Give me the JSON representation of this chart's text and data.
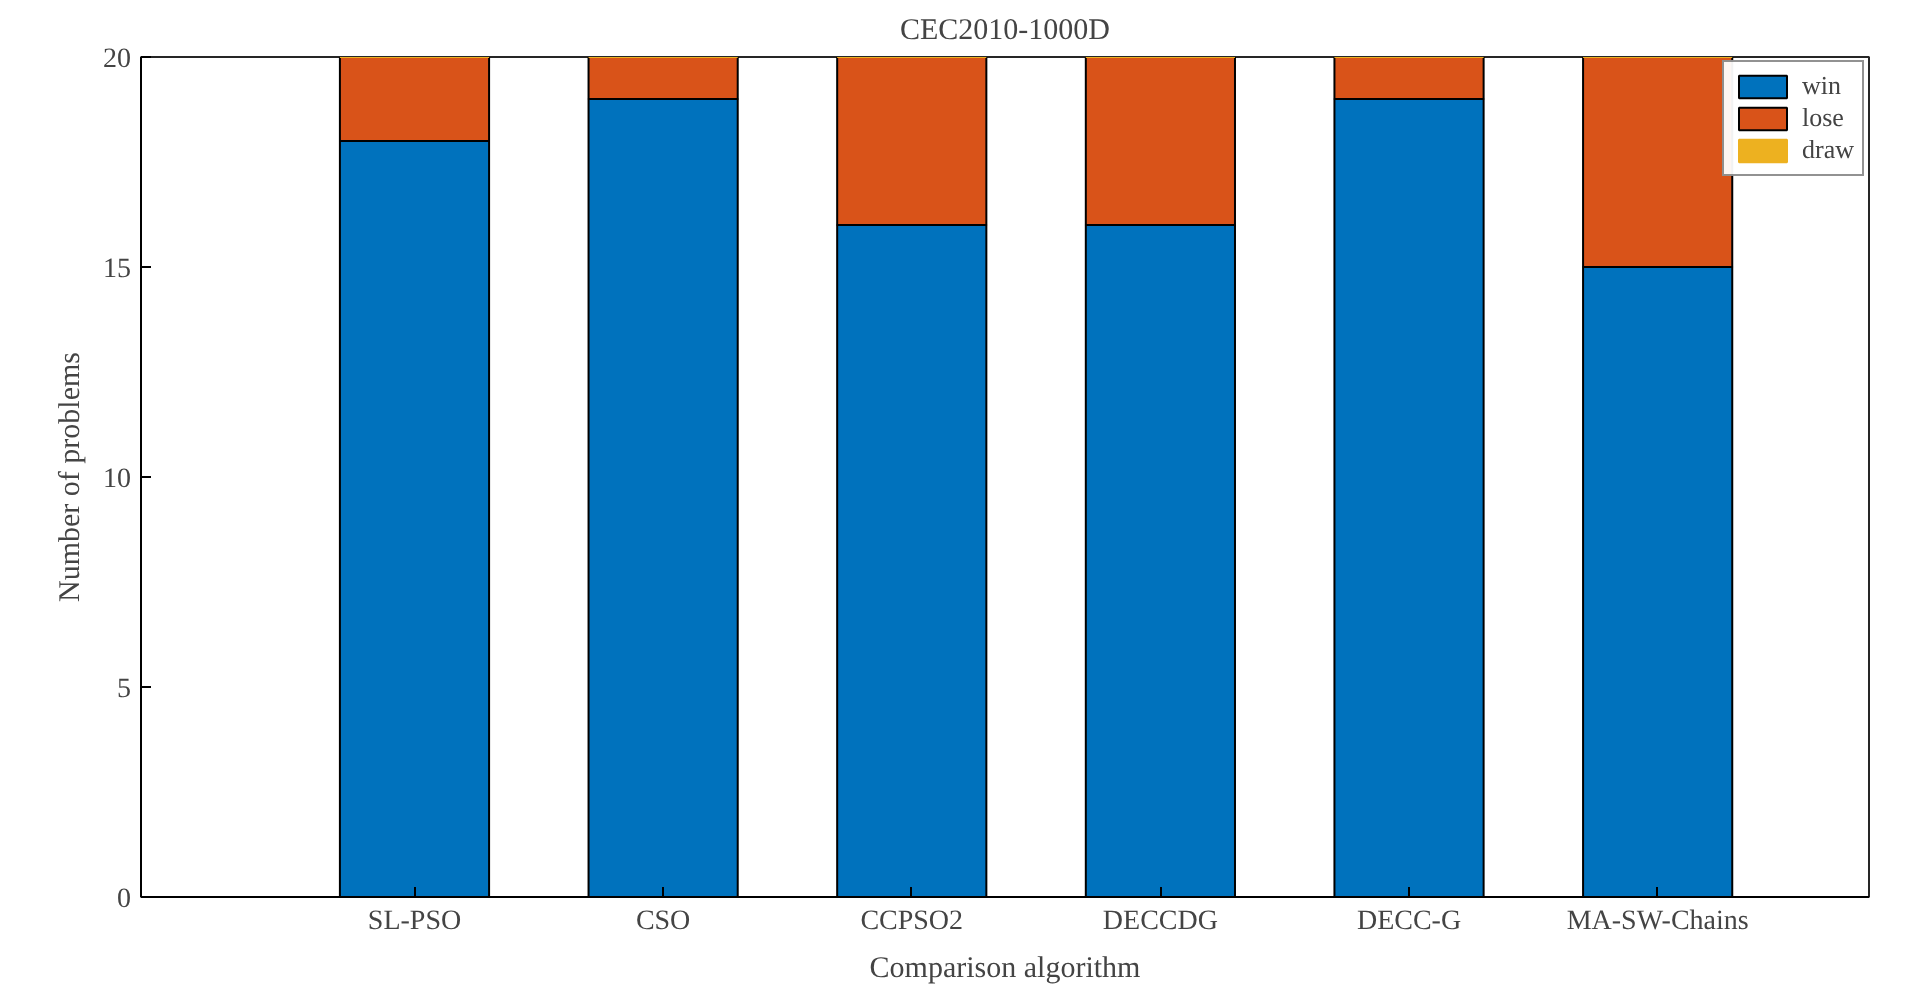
{
  "chart_data": {
    "type": "bar",
    "title": "CEC2010-1000D",
    "xlabel": "Comparison algorithm",
    "ylabel": "Number of problems",
    "categories": [
      "SL-PSO",
      "CSO",
      "CCPSO2",
      "DECCDG",
      "DECC-G",
      "MA-SW-Chains"
    ],
    "series": [
      {
        "name": "win",
        "color": "#0072bd",
        "values": [
          18,
          19,
          16,
          16,
          19,
          15
        ]
      },
      {
        "name": "lose",
        "color": "#d95319",
        "values": [
          2,
          1,
          4,
          4,
          1,
          5
        ]
      },
      {
        "name": "draw",
        "color": "#edb120",
        "values": [
          0,
          0,
          0,
          0,
          0,
          0
        ]
      }
    ],
    "stacked": true,
    "ylim": [
      0,
      20
    ],
    "yticks": [
      0,
      5,
      10,
      15,
      20
    ],
    "grid": false,
    "legend": "top right"
  }
}
